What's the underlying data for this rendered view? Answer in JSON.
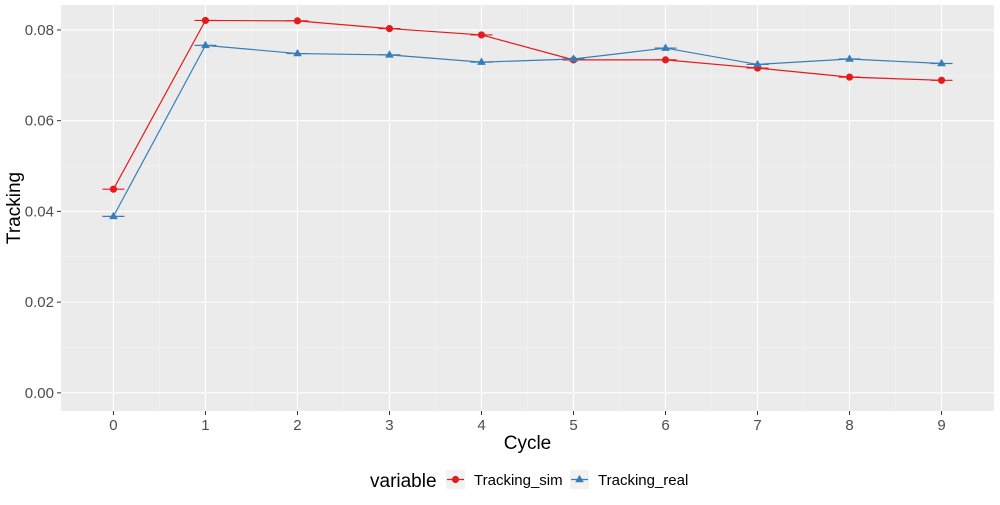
{
  "chart_data": {
    "type": "line",
    "xlabel": "Cycle",
    "ylabel": "Tracking",
    "x": [
      0,
      1,
      2,
      3,
      4,
      5,
      6,
      7,
      8,
      9
    ],
    "xlim": [
      -0.57,
      9.57
    ],
    "ylim": [
      -0.004,
      0.0855
    ],
    "yticks": [
      0.0,
      0.02,
      0.04,
      0.06,
      0.08
    ],
    "ytick_labels": [
      "0.00",
      "0.02",
      "0.04",
      "0.06",
      "0.08"
    ],
    "xtick_labels": [
      "0",
      "1",
      "2",
      "3",
      "4",
      "5",
      "6",
      "7",
      "8",
      "9"
    ],
    "grid": true,
    "legend": {
      "title": "variable",
      "position": "bottom"
    },
    "series": [
      {
        "name": "Tracking_sim",
        "color": "#e41a1c",
        "marker": "circle",
        "values": [
          0.0449,
          0.0821,
          0.082,
          0.0803,
          0.0789,
          0.0734,
          0.0734,
          0.0716,
          0.0696,
          0.0689
        ]
      },
      {
        "name": "Tracking_real",
        "color": "#377eb8",
        "marker": "triangle",
        "values": [
          0.0389,
          0.0766,
          0.0748,
          0.0745,
          0.0729,
          0.0736,
          0.076,
          0.0724,
          0.0736,
          0.0726
        ]
      }
    ]
  }
}
